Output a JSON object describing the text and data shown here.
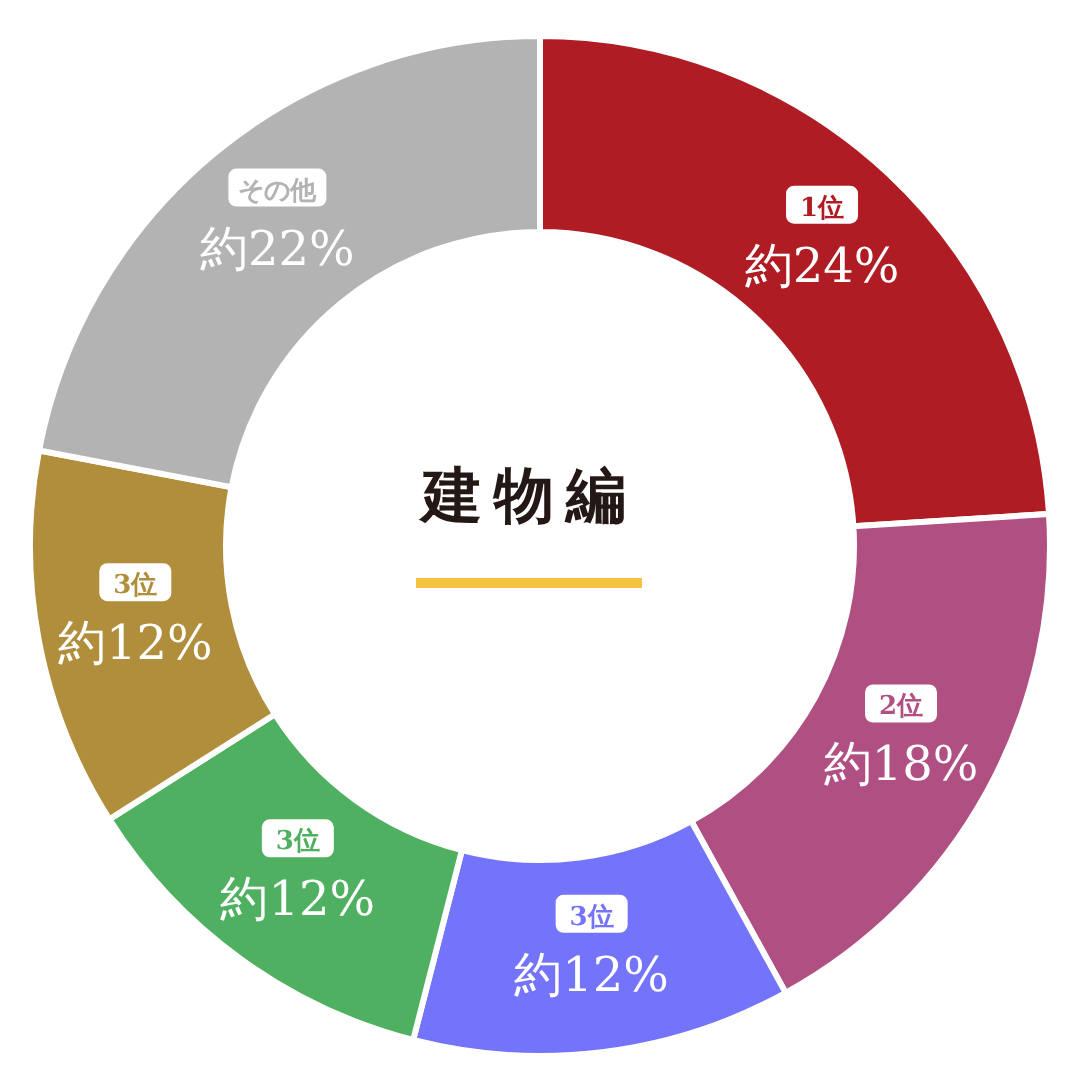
{
  "chart_data": {
    "type": "donut",
    "title": "建物編",
    "categories": [
      "1位",
      "2位",
      "3位",
      "3位",
      "3位",
      "その他"
    ],
    "values": [
      24,
      18,
      12,
      12,
      12,
      22
    ],
    "colors": [
      "#b01c24",
      "#b04f82",
      "#7474fa",
      "#4fb062",
      "#b08e3b",
      "#b3b3b3"
    ],
    "value_labels": [
      "約24%",
      "約18%",
      "約12%",
      "約12%",
      "約12%",
      "約22%"
    ],
    "legend": false
  }
}
